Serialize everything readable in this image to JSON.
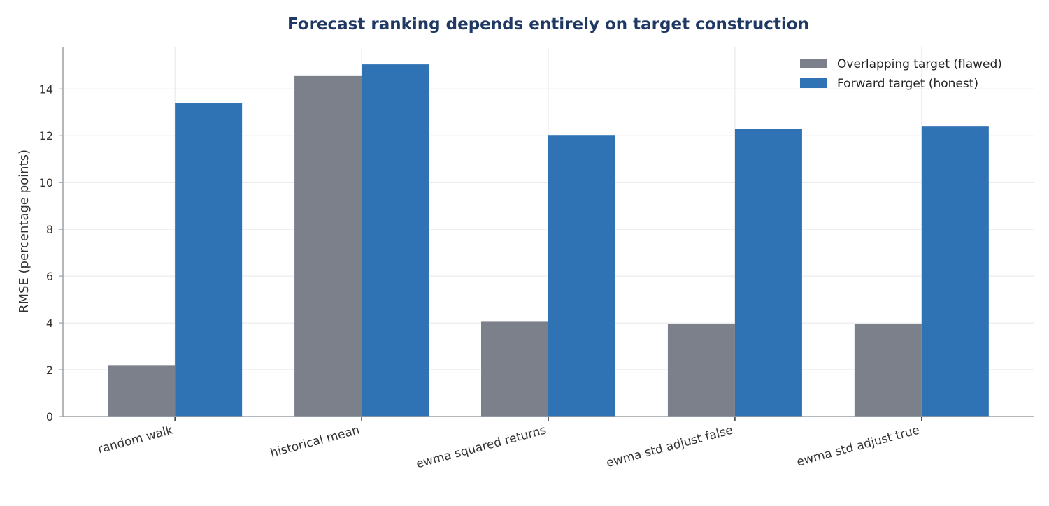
{
  "chart_data": {
    "type": "bar",
    "title": "Forecast ranking depends entirely on target construction",
    "xlabel": "",
    "ylabel": "RMSE (percentage points)",
    "ylim": [
      0,
      15.8
    ],
    "yticks": [
      0,
      2,
      4,
      6,
      8,
      10,
      12,
      14
    ],
    "grid": true,
    "legend_position": "top-right",
    "categories": [
      "random walk",
      "historical mean",
      "ewma squared returns",
      "ewma std adjust false",
      "ewma std adjust true"
    ],
    "series": [
      {
        "name": "Overlapping target (flawed)",
        "color": "#7b808b",
        "values": [
          2.2,
          14.55,
          4.05,
          3.95,
          3.95
        ]
      },
      {
        "name": "Forward target (honest)",
        "color": "#2f73b5",
        "values": [
          13.38,
          15.05,
          12.03,
          12.3,
          12.42
        ]
      }
    ],
    "colors": {
      "title": "#1f3864",
      "text": "#333333",
      "grid": "#e6e6e6",
      "axis": "#9aa0a6"
    }
  }
}
